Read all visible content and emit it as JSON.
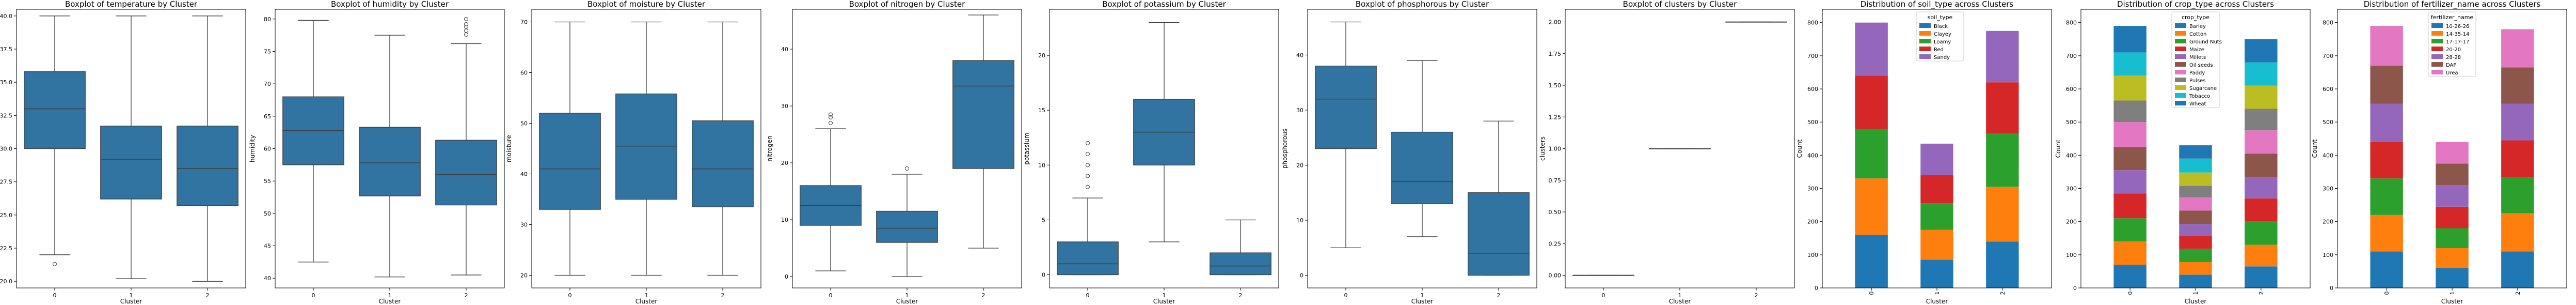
{
  "chart_data": [
    {
      "type": "boxplot",
      "title": "Boxplot of temperature by Cluster",
      "xlabel": "Cluster",
      "ylabel": "temperature",
      "categories": [
        "0",
        "1",
        "2"
      ],
      "ylim": [
        19.5,
        40.5
      ],
      "yticks": [
        20.0,
        22.5,
        25.0,
        27.5,
        30.0,
        32.5,
        35.0,
        37.5,
        40.0
      ],
      "ytick_labels": [
        "20.0",
        "22.5",
        "25.0",
        "27.5",
        "30.0",
        "32.5",
        "35.0",
        "37.5",
        "40.0"
      ],
      "boxes": [
        {
          "whislo": 22.0,
          "q1": 30.0,
          "med": 33.0,
          "q3": 35.8,
          "whishi": 40.0,
          "fliers": [
            21.3
          ]
        },
        {
          "whislo": 20.2,
          "q1": 26.2,
          "med": 29.2,
          "q3": 31.7,
          "whishi": 40.0,
          "fliers": []
        },
        {
          "whislo": 20.0,
          "q1": 25.7,
          "med": 28.5,
          "q3": 31.7,
          "whishi": 40.0,
          "fliers": []
        }
      ]
    },
    {
      "type": "boxplot",
      "title": "Boxplot of humidity by Cluster",
      "xlabel": "Cluster",
      "ylabel": "humidity",
      "categories": [
        "0",
        "1",
        "2"
      ],
      "ylim": [
        38.5,
        81.5
      ],
      "yticks": [
        40,
        45,
        50,
        55,
        60,
        65,
        70,
        75,
        80
      ],
      "ytick_labels": [
        "40",
        "45",
        "50",
        "55",
        "60",
        "65",
        "70",
        "75",
        "80"
      ],
      "boxes": [
        {
          "whislo": 42.5,
          "q1": 57.5,
          "med": 62.8,
          "q3": 68.0,
          "whishi": 79.8,
          "fliers": []
        },
        {
          "whislo": 40.2,
          "q1": 52.7,
          "med": 57.8,
          "q3": 63.3,
          "whishi": 77.5,
          "fliers": []
        },
        {
          "whislo": 40.5,
          "q1": 51.3,
          "med": 56.0,
          "q3": 61.3,
          "whishi": 76.2,
          "fliers": [
            77.6,
            78.2,
            78.8,
            79.2,
            80.0
          ]
        }
      ]
    },
    {
      "type": "boxplot",
      "title": "Boxplot of moisture by Cluster",
      "xlabel": "Cluster",
      "ylabel": "moisture",
      "categories": [
        "0",
        "1",
        "2"
      ],
      "ylim": [
        17.5,
        72.5
      ],
      "yticks": [
        20,
        30,
        40,
        50,
        60,
        70
      ],
      "ytick_labels": [
        "20",
        "30",
        "40",
        "50",
        "60",
        "70"
      ],
      "boxes": [
        {
          "whislo": 20.0,
          "q1": 33.0,
          "med": 41.0,
          "q3": 52.0,
          "whishi": 70.0,
          "fliers": []
        },
        {
          "whislo": 20.0,
          "q1": 35.0,
          "med": 45.5,
          "q3": 55.8,
          "whishi": 70.0,
          "fliers": []
        },
        {
          "whislo": 20.0,
          "q1": 33.5,
          "med": 41.0,
          "q3": 50.5,
          "whishi": 70.0,
          "fliers": []
        }
      ]
    },
    {
      "type": "boxplot",
      "title": "Boxplot of nitrogen by Cluster",
      "xlabel": "Cluster",
      "ylabel": "nitrogen",
      "categories": [
        "0",
        "1",
        "2"
      ],
      "ylim": [
        -2,
        47
      ],
      "yticks": [
        0,
        10,
        20,
        30,
        40
      ],
      "ytick_labels": [
        "0",
        "10",
        "20",
        "30",
        "40"
      ],
      "boxes": [
        {
          "whislo": 1.0,
          "q1": 9.0,
          "med": 12.5,
          "q3": 16.0,
          "whishi": 26.0,
          "fliers": [
            27.0,
            28.0,
            28.5
          ]
        },
        {
          "whislo": 0.0,
          "q1": 6.0,
          "med": 8.5,
          "q3": 11.5,
          "whishi": 18.0,
          "fliers": [
            19.0
          ]
        },
        {
          "whislo": 5.0,
          "q1": 19.0,
          "med": 33.5,
          "q3": 38.0,
          "whishi": 46.0,
          "fliers": []
        }
      ]
    },
    {
      "type": "boxplot",
      "title": "Boxplot of potassium by Cluster",
      "xlabel": "Cluster",
      "ylabel": "potassium",
      "categories": [
        "0",
        "1",
        "2"
      ],
      "ylim": [
        -1.2,
        24.2
      ],
      "yticks": [
        0,
        5,
        10,
        15,
        20
      ],
      "ytick_labels": [
        "0",
        "5",
        "10",
        "15",
        "20"
      ],
      "boxes": [
        {
          "whislo": 0.0,
          "q1": 0.0,
          "med": 1.0,
          "q3": 3.0,
          "whishi": 7.0,
          "fliers": [
            8.0,
            9.0,
            10.0,
            11.0,
            12.0
          ]
        },
        {
          "whislo": 3.0,
          "q1": 10.0,
          "med": 13.0,
          "q3": 16.0,
          "whishi": 23.0,
          "fliers": []
        },
        {
          "whislo": 0.0,
          "q1": 0.0,
          "med": 0.8,
          "q3": 2.0,
          "whishi": 5.0,
          "fliers": []
        }
      ]
    },
    {
      "type": "boxplot",
      "title": "Boxplot of phosphorous by Cluster",
      "xlabel": "Cluster",
      "ylabel": "phosphorous",
      "categories": [
        "0",
        "1",
        "2"
      ],
      "ylim": [
        -2.3,
        48.3
      ],
      "yticks": [
        0,
        10,
        20,
        30,
        40
      ],
      "ytick_labels": [
        "0",
        "10",
        "20",
        "30",
        "40"
      ],
      "boxes": [
        {
          "whislo": 5.0,
          "q1": 23.0,
          "med": 32.0,
          "q3": 38.0,
          "whishi": 46.0,
          "fliers": []
        },
        {
          "whislo": 7.0,
          "q1": 13.0,
          "med": 17.0,
          "q3": 26.0,
          "whishi": 39.0,
          "fliers": []
        },
        {
          "whislo": 0.0,
          "q1": 0.0,
          "med": 4.0,
          "q3": 15.0,
          "whishi": 28.0,
          "fliers": []
        }
      ]
    },
    {
      "type": "boxplot",
      "title": "Boxplot of clusters by Cluster",
      "xlabel": "Cluster",
      "ylabel": "clusters",
      "categories": [
        "0",
        "1",
        "2"
      ],
      "ylim": [
        -0.1,
        2.1
      ],
      "yticks": [
        0.0,
        0.25,
        0.5,
        0.75,
        1.0,
        1.25,
        1.5,
        1.75,
        2.0
      ],
      "ytick_labels": [
        "0.00",
        "0.25",
        "0.50",
        "0.75",
        "1.00",
        "1.25",
        "1.50",
        "1.75",
        "2.00"
      ],
      "boxes": [
        {
          "whislo": 0,
          "q1": 0,
          "med": 0,
          "q3": 0,
          "whishi": 0,
          "fliers": []
        },
        {
          "whislo": 1,
          "q1": 1,
          "med": 1,
          "q3": 1,
          "whishi": 1,
          "fliers": []
        },
        {
          "whislo": 2,
          "q1": 2,
          "med": 2,
          "q3": 2,
          "whishi": 2,
          "fliers": []
        }
      ]
    },
    {
      "type": "stacked_bar",
      "title": "Distribution of soil_type across Clusters",
      "xlabel": "Cluster",
      "ylabel": "Count",
      "categories": [
        "0",
        "1",
        "2"
      ],
      "ylim": [
        0,
        840
      ],
      "yticks": [
        0,
        100,
        200,
        300,
        400,
        500,
        600,
        700,
        800
      ],
      "ytick_labels": [
        "0",
        "100",
        "200",
        "300",
        "400",
        "500",
        "600",
        "700",
        "800"
      ],
      "legend_title": "soil_type",
      "legend_position": "upper-right",
      "series": [
        {
          "name": "Black",
          "color": "#1f77b4",
          "values": [
            160,
            85,
            140
          ]
        },
        {
          "name": "Clayey",
          "color": "#ff7f0e",
          "values": [
            170,
            90,
            165
          ]
        },
        {
          "name": "Loamy",
          "color": "#2ca02c",
          "values": [
            150,
            80,
            160
          ]
        },
        {
          "name": "Red",
          "color": "#d62728",
          "values": [
            160,
            85,
            155
          ]
        },
        {
          "name": "Sandy",
          "color": "#9467bd",
          "values": [
            160,
            95,
            155
          ]
        }
      ]
    },
    {
      "type": "stacked_bar",
      "title": "Distribution of crop_type across Clusters",
      "xlabel": "Cluster",
      "ylabel": "Count",
      "categories": [
        "0",
        "1",
        "2"
      ],
      "ylim": [
        0,
        840
      ],
      "yticks": [
        0,
        100,
        200,
        300,
        400,
        500,
        600,
        700,
        800
      ],
      "ytick_labels": [
        "0",
        "100",
        "200",
        "300",
        "400",
        "500",
        "600",
        "700",
        "800"
      ],
      "legend_title": "crop_type",
      "legend_position": "upper-center",
      "series": [
        {
          "name": "Barley",
          "color": "#1f77b4",
          "values": [
            70,
            40,
            65
          ]
        },
        {
          "name": "Cotton",
          "color": "#ff7f0e",
          "values": [
            70,
            38,
            65
          ]
        },
        {
          "name": "Ground Nuts",
          "color": "#2ca02c",
          "values": [
            70,
            40,
            70
          ]
        },
        {
          "name": "Maize",
          "color": "#d62728",
          "values": [
            75,
            40,
            70
          ]
        },
        {
          "name": "Millets",
          "color": "#9467bd",
          "values": [
            70,
            35,
            65
          ]
        },
        {
          "name": "Oil seeds",
          "color": "#8c564b",
          "values": [
            70,
            40,
            70
          ]
        },
        {
          "name": "Paddy",
          "color": "#e377c2",
          "values": [
            75,
            40,
            70
          ]
        },
        {
          "name": "Pulses",
          "color": "#7f7f7f",
          "values": [
            65,
            35,
            65
          ]
        },
        {
          "name": "Sugarcane",
          "color": "#bcbd22",
          "values": [
            75,
            40,
            70
          ]
        },
        {
          "name": "Tobacco",
          "color": "#17becf",
          "values": [
            70,
            42,
            70
          ]
        },
        {
          "name": "Wheat",
          "color": "#1f77b4",
          "values": [
            80,
            40,
            70
          ]
        }
      ]
    },
    {
      "type": "stacked_bar",
      "title": "Distribution of fertilizer_name across Clusters",
      "xlabel": "Cluster",
      "ylabel": "Count",
      "categories": [
        "0",
        "1",
        "2"
      ],
      "ylim": [
        0,
        840
      ],
      "yticks": [
        0,
        100,
        200,
        300,
        400,
        500,
        600,
        700,
        800
      ],
      "ytick_labels": [
        "0",
        "100",
        "200",
        "300",
        "400",
        "500",
        "600",
        "700",
        "800"
      ],
      "legend_title": "fertilizer_name",
      "legend_position": "upper-center",
      "series": [
        {
          "name": "10-26-26",
          "color": "#1f77b4",
          "values": [
            110,
            60,
            110
          ]
        },
        {
          "name": "14-35-14",
          "color": "#ff7f0e",
          "values": [
            110,
            60,
            115
          ]
        },
        {
          "name": "17-17-17",
          "color": "#2ca02c",
          "values": [
            110,
            60,
            110
          ]
        },
        {
          "name": "20-20",
          "color": "#d62728",
          "values": [
            110,
            65,
            110
          ]
        },
        {
          "name": "28-28",
          "color": "#9467bd",
          "values": [
            115,
            65,
            110
          ]
        },
        {
          "name": "DAP",
          "color": "#8c564b",
          "values": [
            115,
            65,
            110
          ]
        },
        {
          "name": "Urea",
          "color": "#e377c2",
          "values": [
            120,
            65,
            115
          ]
        }
      ]
    }
  ]
}
